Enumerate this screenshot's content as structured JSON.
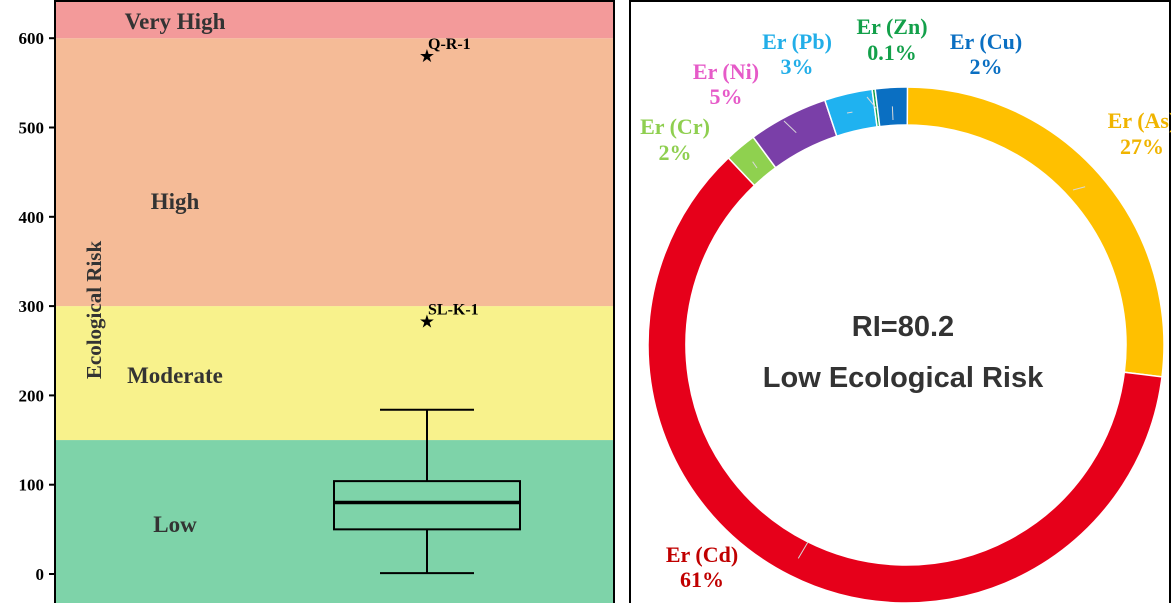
{
  "chart_data": [
    {
      "type": "boxplot",
      "ylabel": "Ecological Risk",
      "ylim": [
        0,
        630
      ],
      "yticks": [
        "0",
        "100",
        "200",
        "300",
        "400",
        "500",
        "600"
      ],
      "yticks_values": [
        0,
        100,
        200,
        300,
        400,
        500,
        600
      ],
      "bands": [
        {
          "label": "Low",
          "from": 0,
          "to": 150,
          "color": "#7ed3a9"
        },
        {
          "label": "Moderate",
          "from": 150,
          "to": 300,
          "color": "#f8f28c"
        },
        {
          "label": "High",
          "from": 300,
          "to": 600,
          "color": "#f5bb97"
        },
        {
          "label": "Very High",
          "from": 600,
          "to": 630,
          "color": "#f39a9a"
        }
      ],
      "box": {
        "whisker_low": 1,
        "q1": 50,
        "median": 80,
        "q3": 104,
        "whisker_high": 184
      },
      "outliers": [
        {
          "label": "Q-R-1",
          "value": 580
        },
        {
          "label": "SL-K-1",
          "value": 283
        }
      ]
    },
    {
      "type": "pie",
      "center_lines": [
        "RI=80.2",
        "Low Ecological Risk"
      ],
      "slices": [
        {
          "name": "Er (As)",
          "pct": "27%",
          "value": 27,
          "color": "#ffc000"
        },
        {
          "name": "Er (Cd)",
          "pct": "61%",
          "value": 61,
          "color": "#e6001a"
        },
        {
          "name": "Er (Cr)",
          "pct": "2%",
          "value": 2,
          "color": "#8fd14f"
        },
        {
          "name": "Er (Ni)",
          "pct": "5%",
          "value": 5,
          "color": "#7a3fa8"
        },
        {
          "name": "Er (Pb)",
          "pct": "3%",
          "value": 3,
          "color": "#1fb2f0"
        },
        {
          "name": "Er (Zn)",
          "pct": "0.1%",
          "value": 0.1,
          "color": "#13a04a"
        },
        {
          "name": "Er (Cu)",
          "pct": "2%",
          "value": 2,
          "color": "#0a6fc2"
        }
      ],
      "label_colors": {
        "Er (As)": "#f0b400",
        "Er (Cd)": "#c00000",
        "Er (Cr)": "#8fcf50",
        "Er (Ni)": "#e65ac8",
        "Er (Pb)": "#22aee8",
        "Er (Zn)": "#13a04a",
        "Er (Cu)": "#0a6fc2"
      }
    }
  ]
}
